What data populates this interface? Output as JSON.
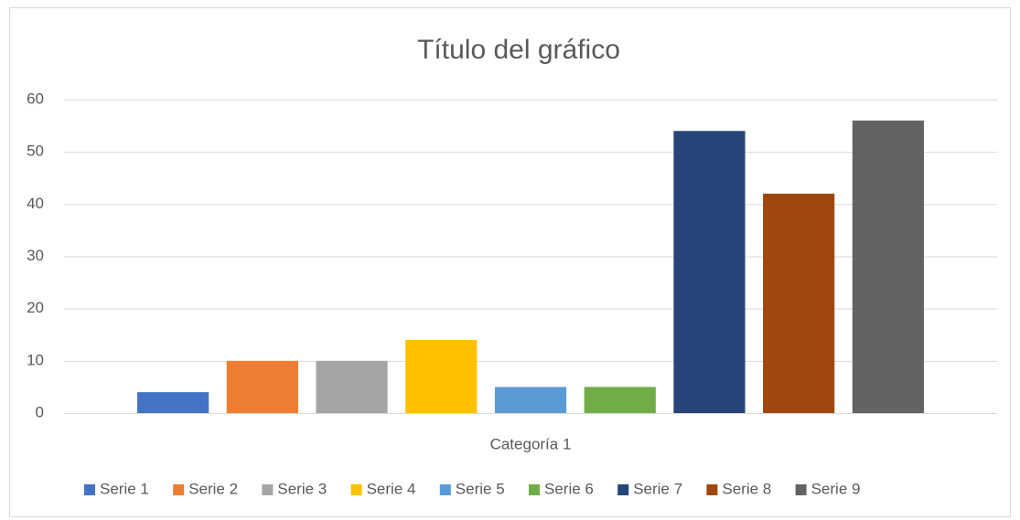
{
  "chart_data": {
    "type": "bar",
    "title": "Título del gráfico",
    "categories": [
      "Categoría 1"
    ],
    "series": [
      {
        "name": "Serie 1",
        "color": "#4472c4",
        "values": [
          4
        ]
      },
      {
        "name": "Serie 2",
        "color": "#ed7d31",
        "values": [
          10
        ]
      },
      {
        "name": "Serie 3",
        "color": "#a5a5a5",
        "values": [
          10
        ]
      },
      {
        "name": "Serie 4",
        "color": "#ffc000",
        "values": [
          14
        ]
      },
      {
        "name": "Serie 5",
        "color": "#5b9bd5",
        "values": [
          5
        ]
      },
      {
        "name": "Serie 6",
        "color": "#70ad47",
        "values": [
          5
        ]
      },
      {
        "name": "Serie 7",
        "color": "#264478",
        "values": [
          54
        ]
      },
      {
        "name": "Serie 8",
        "color": "#9e480e",
        "values": [
          42
        ]
      },
      {
        "name": "Serie 9",
        "color": "#636363",
        "values": [
          56
        ]
      }
    ],
    "ylim": [
      0,
      60
    ],
    "yticks": [
      0,
      10,
      20,
      30,
      40,
      50,
      60
    ],
    "grid": true,
    "legend": "bottom"
  }
}
